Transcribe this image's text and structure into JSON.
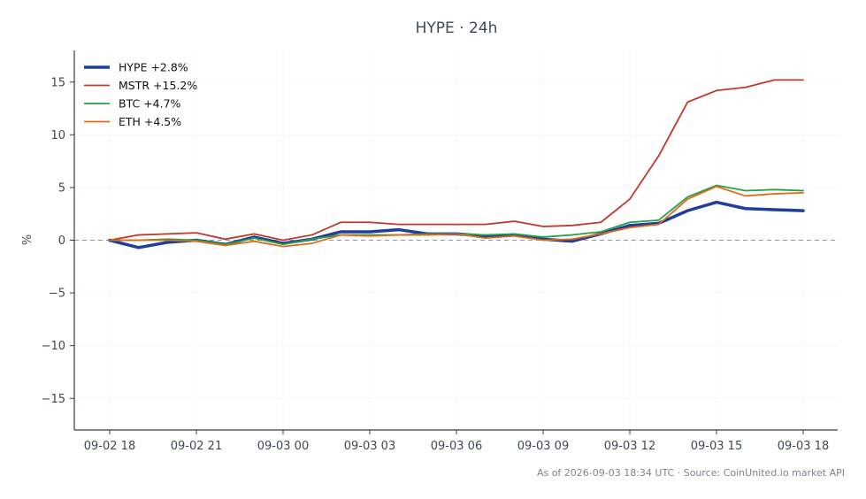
{
  "chart_data": {
    "type": "line",
    "title": "HYPE · 24h",
    "ylabel": "%",
    "xlabel": "",
    "xlim": [
      0,
      24.3
    ],
    "ylim": [
      -18,
      18
    ],
    "x_tick_positions": [
      0,
      3,
      6,
      9,
      12,
      15,
      18,
      21,
      24
    ],
    "x_tick_labels": [
      "09-02 18",
      "09-02 21",
      "09-03 00",
      "09-03 03",
      "09-03 06",
      "09-03 09",
      "09-03 12",
      "09-03 15",
      "09-03 18"
    ],
    "y_ticks": [
      -15,
      -10,
      -5,
      0,
      5,
      10,
      15
    ],
    "y_tick_labels": [
      "−15",
      "−10",
      "−5",
      "0",
      "5",
      "10",
      "15"
    ],
    "x": [
      0,
      1,
      2,
      3,
      4,
      5,
      6,
      7,
      8,
      9,
      10,
      11,
      12,
      13,
      14,
      15,
      16,
      17,
      18,
      19,
      20,
      21,
      22,
      23,
      24
    ],
    "series": [
      {
        "name": "HYPE +2.8%",
        "color": "#1f3f9c",
        "width": 3.5,
        "values": [
          0.0,
          -0.7,
          -0.2,
          0.0,
          -0.4,
          0.3,
          -0.3,
          0.1,
          0.8,
          0.8,
          1.0,
          0.6,
          0.6,
          0.4,
          0.5,
          0.1,
          -0.1,
          0.6,
          1.4,
          1.6,
          2.8,
          3.6,
          3.0,
          2.9,
          2.8
        ]
      },
      {
        "name": "MSTR +15.2%",
        "color": "#c0392b",
        "width": 1.8,
        "values": [
          0.0,
          0.5,
          0.6,
          0.7,
          0.1,
          0.6,
          0.0,
          0.5,
          1.7,
          1.7,
          1.5,
          1.5,
          1.5,
          1.5,
          1.8,
          1.3,
          1.4,
          1.7,
          3.9,
          8.0,
          13.1,
          14.2,
          14.5,
          15.2,
          15.2
        ]
      },
      {
        "name": "BTC +4.7%",
        "color": "#27a046",
        "width": 1.8,
        "values": [
          0.0,
          0.0,
          0.1,
          0.0,
          -0.4,
          0.2,
          -0.4,
          0.1,
          0.5,
          0.5,
          0.5,
          0.6,
          0.6,
          0.5,
          0.6,
          0.3,
          0.5,
          0.8,
          1.7,
          1.9,
          4.1,
          5.2,
          4.7,
          4.8,
          4.7
        ]
      },
      {
        "name": "ETH +4.5%",
        "color": "#e06b1a",
        "width": 1.8,
        "values": [
          0.0,
          0.0,
          0.0,
          -0.1,
          -0.5,
          -0.1,
          -0.6,
          -0.3,
          0.5,
          0.4,
          0.5,
          0.5,
          0.6,
          0.2,
          0.4,
          0.0,
          0.1,
          0.6,
          1.2,
          1.5,
          3.9,
          5.1,
          4.2,
          4.4,
          4.5
        ]
      }
    ],
    "reference_line": {
      "y": 0,
      "style": "dashed"
    },
    "grid": true,
    "legend_position": "top-left"
  },
  "footer": {
    "source": "As of 2026-09-03 18:34 UTC · Source: CoinUnited.io market API"
  }
}
